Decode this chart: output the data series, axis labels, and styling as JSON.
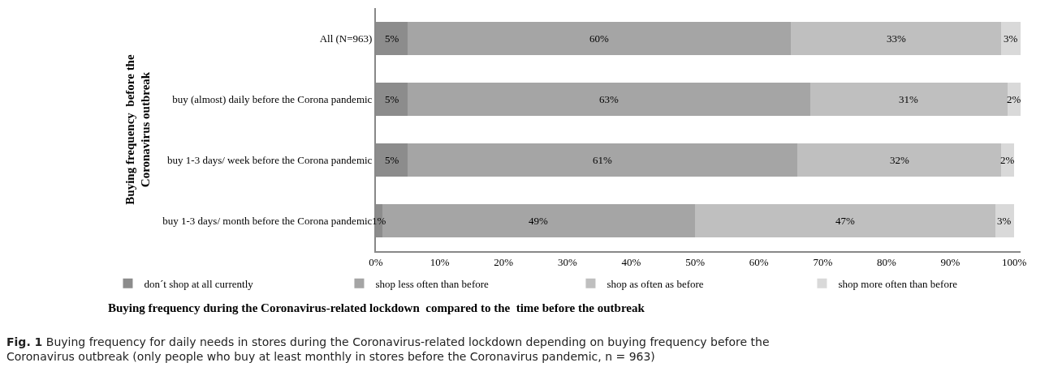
{
  "chart_data": {
    "type": "bar",
    "orientation": "horizontal",
    "stacked": true,
    "categories": [
      "All (N=963)",
      "buy (almost) daily before the Corona pandemic",
      "buy 1-3 days/ week before the Corona pandemic",
      "buy 1-3 days/ month before the Corona pandemic"
    ],
    "series": [
      {
        "name": "don´t shop at all currently",
        "color": "#8c8c8c",
        "values": [
          5,
          5,
          5,
          1
        ],
        "value_labels": [
          "5%",
          "5%",
          "5%",
          "1%"
        ]
      },
      {
        "name": "shop less often than before",
        "color": "#a5a5a5",
        "values": [
          60,
          63,
          61,
          49
        ],
        "value_labels": [
          "60%",
          "63%",
          "61%",
          "49%"
        ]
      },
      {
        "name": "shop as often as before",
        "color": "#bfbfbf",
        "values": [
          33,
          31,
          32,
          47
        ],
        "value_labels": [
          "33%",
          "31%",
          "32%",
          "47%"
        ]
      },
      {
        "name": "shop more often than before",
        "color": "#d9d9d9",
        "values": [
          3,
          2,
          2,
          3
        ],
        "value_labels": [
          "3%",
          "2%",
          "2%",
          "3%"
        ]
      }
    ],
    "xlim": [
      0,
      101
    ],
    "xticks": [
      {
        "value": 0,
        "label": "0%"
      },
      {
        "value": 10,
        "label": "10%"
      },
      {
        "value": 20,
        "label": "20%"
      },
      {
        "value": 30,
        "label": "30%"
      },
      {
        "value": 40,
        "label": "40%"
      },
      {
        "value": 50,
        "label": "50%"
      },
      {
        "value": 60,
        "label": "60%"
      },
      {
        "value": 70,
        "label": "70%"
      },
      {
        "value": 80,
        "label": "80%"
      },
      {
        "value": 90,
        "label": "90%"
      },
      {
        "value": 100,
        "label": "100%"
      }
    ],
    "xlabel": "Buying frequency during the Coronavirus-related lockdown  compared to the  time before the outbreak",
    "ylabel": "Buying frequency  before the\nCoronavirus outbreak",
    "legend": "bottom",
    "annotations": [
      "Fig. 1",
      "Buying frequency for daily needs in stores during the Coronavirus-related lockdown depending on buying frequency before the Coronavirus outbreak (only people who buy at least monthly in stores before the Coronavirus pandemic, n = 963)"
    ]
  }
}
